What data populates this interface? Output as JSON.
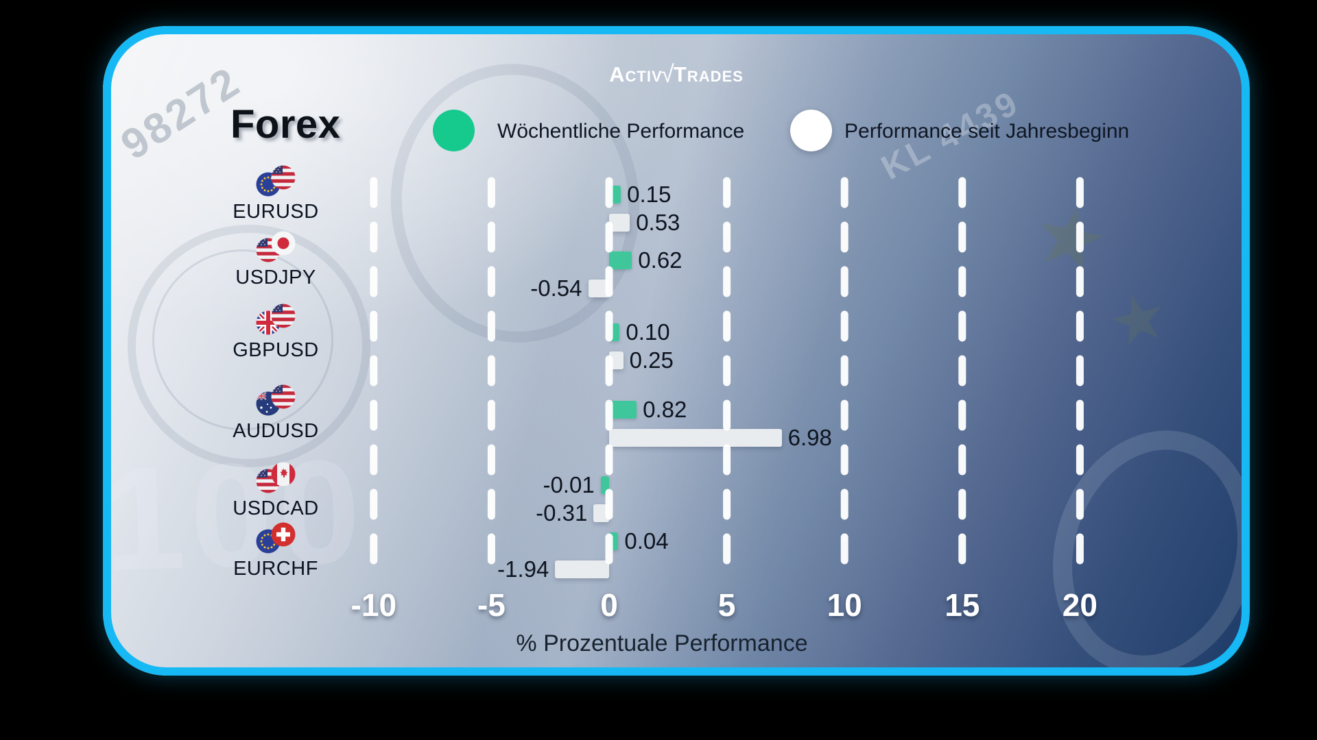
{
  "brand": {
    "left": "Activ",
    "check": "√",
    "right": "Trades"
  },
  "title": "Forex",
  "legend": [
    {
      "label": "Wöchentliche Performance",
      "color": "#16C98D"
    },
    {
      "label": "Performance seit Jahresbeginn",
      "color": "#FFFFFF"
    }
  ],
  "chart_data": {
    "type": "bar",
    "orientation": "horizontal",
    "title": "Forex",
    "categories": [
      "EURUSD",
      "USDJPY",
      "GBPUSD",
      "AUDUSD",
      "USDCAD",
      "EURCHF"
    ],
    "flag_pairs": [
      [
        "eu",
        "us"
      ],
      [
        "us",
        "jp"
      ],
      [
        "gb",
        "us"
      ],
      [
        "au",
        "us"
      ],
      [
        "us",
        "ca"
      ],
      [
        "eu",
        "ch"
      ]
    ],
    "series": [
      {
        "name": "Wöchentliche Performance",
        "color": "#3FC79B",
        "values": [
          0.15,
          0.62,
          0.1,
          0.82,
          -0.01,
          0.04
        ]
      },
      {
        "name": "Performance seit Jahresbeginn",
        "color": "#E9ECEF",
        "values": [
          0.53,
          -0.54,
          0.25,
          6.98,
          -0.31,
          -1.94
        ]
      }
    ],
    "xlabel": "% Prozentuale Performance",
    "xticks": [
      -10,
      -5,
      0,
      5,
      10,
      15,
      20
    ],
    "xlim": [
      -10,
      20
    ],
    "grid": "dashed-vertical-white",
    "legend_position": "top"
  },
  "background_decor": {
    "serial_left": "98272",
    "serial_right": "KL 4439",
    "bill_number": "100"
  },
  "colors": {
    "card_border": "#16B9F4",
    "outer_background": "#000000",
    "bar_green": "#3FC79B",
    "bar_white": "#E9ECEF"
  }
}
